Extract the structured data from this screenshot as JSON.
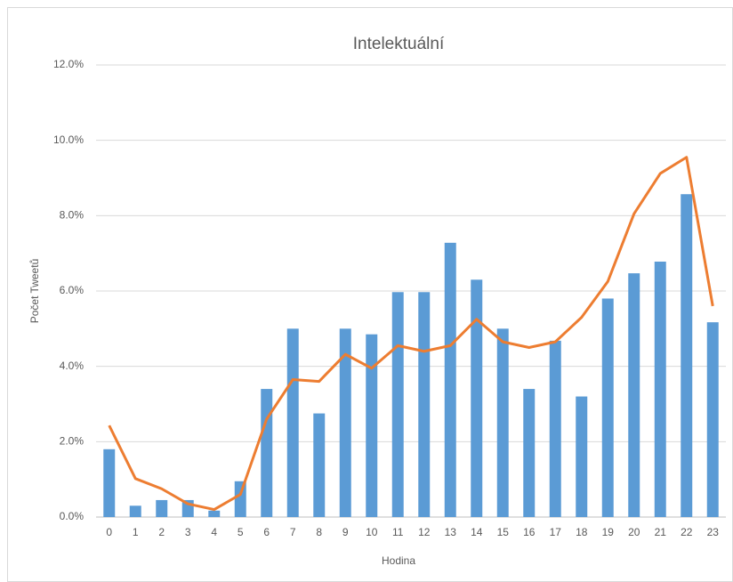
{
  "chart_data": {
    "type": "bar",
    "title": "Intelektuální",
    "x_label": "Hodina",
    "y_label": "Počet Tweetů",
    "categories": [
      "0",
      "1",
      "2",
      "3",
      "4",
      "5",
      "6",
      "7",
      "8",
      "9",
      "10",
      "11",
      "12",
      "13",
      "14",
      "15",
      "16",
      "17",
      "18",
      "19",
      "20",
      "21",
      "22",
      "23"
    ],
    "series": [
      {
        "type": "bar",
        "color": "#5b9bd5",
        "values": [
          1.8,
          0.3,
          0.45,
          0.45,
          0.17,
          0.95,
          3.4,
          5.0,
          2.75,
          5.0,
          4.85,
          5.97,
          5.97,
          7.28,
          6.3,
          5.0,
          3.4,
          4.68,
          3.2,
          5.8,
          6.47,
          6.78,
          8.57,
          5.17
        ]
      },
      {
        "type": "line",
        "color": "#ed7d31",
        "values": [
          2.43,
          1.02,
          0.75,
          0.35,
          0.2,
          0.6,
          2.6,
          3.65,
          3.6,
          4.32,
          3.95,
          4.55,
          4.4,
          4.55,
          5.25,
          4.65,
          4.5,
          4.65,
          5.3,
          6.25,
          8.05,
          9.12,
          9.55,
          5.6
        ]
      }
    ],
    "ylim": [
      0,
      12
    ],
    "yticks": [
      {
        "value": 0,
        "label": "0.0%"
      },
      {
        "value": 2,
        "label": "2.0%"
      },
      {
        "value": 4,
        "label": "4.0%"
      },
      {
        "value": 6,
        "label": "6.0%"
      },
      {
        "value": 8,
        "label": "8.0%"
      },
      {
        "value": 10,
        "label": "10.0%"
      },
      {
        "value": 12,
        "label": "12.0%"
      }
    ],
    "grid": true
  }
}
